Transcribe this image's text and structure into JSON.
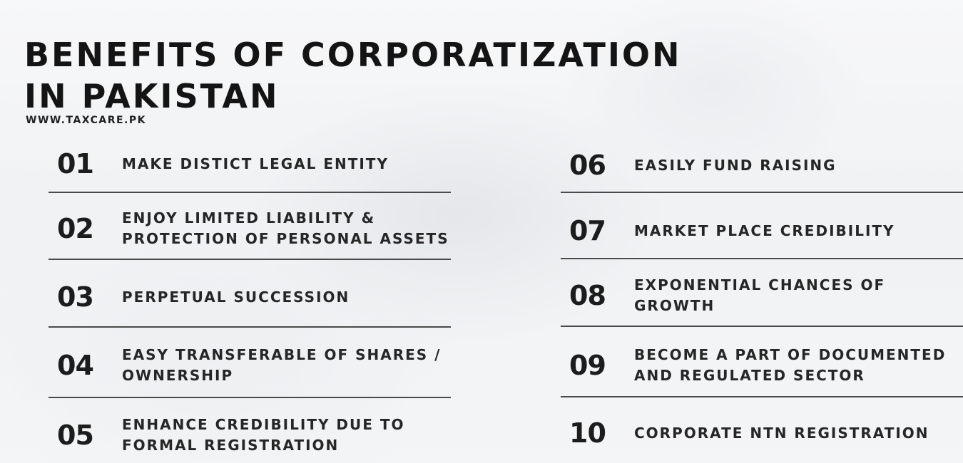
{
  "header": {
    "title": "BENEFITS OF CORPORATIZATION\nIN PAKISTAN",
    "website": "WWW.TAXCARE.PK"
  },
  "benefits": [
    {
      "number": "01",
      "label": "MAKE DISTICT LEGAL ENTITY"
    },
    {
      "number": "02",
      "label": "ENJOY LIMITED LIABILITY &\nPROTECTION OF PERSONAL ASSETS"
    },
    {
      "number": "03",
      "label": "PERPETUAL SUCCESSION"
    },
    {
      "number": "04",
      "label": "EASY TRANSFERABLE OF SHARES /\nOWNERSHIP"
    },
    {
      "number": "05",
      "label": "ENHANCE CREDIBILITY DUE TO\nFORMAL REGISTRATION"
    },
    {
      "number": "06",
      "label": "EASILY FUND RAISING"
    },
    {
      "number": "07",
      "label": "MARKET PLACE CREDIBILITY"
    },
    {
      "number": "08",
      "label": "EXPONENTIAL CHANCES OF\nGROWTH"
    },
    {
      "number": "09",
      "label": "BECOME A PART OF DOCUMENTED\nAND REGULATED SECTOR"
    },
    {
      "number": "10",
      "label": "CORPORATE NTN REGISTRATION"
    }
  ],
  "colors": {
    "text": "#1c1c1c",
    "divider": "#4a4a4a",
    "background": "#e9ecef"
  }
}
